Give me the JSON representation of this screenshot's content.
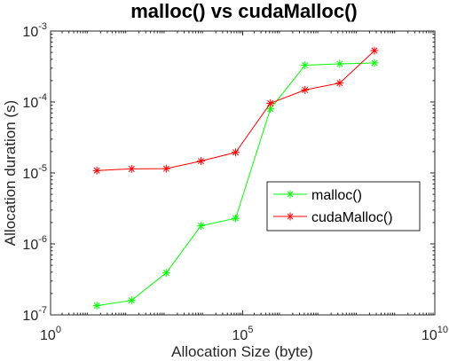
{
  "chart_data": {
    "type": "line",
    "title": "malloc() vs cudaMalloc()",
    "xlabel": "Allocation Size (byte)",
    "ylabel": "Allocation duration (s)",
    "xscale": "log",
    "yscale": "log",
    "xlim": [
      1,
      10000000000
    ],
    "ylim": [
      1e-07,
      0.001
    ],
    "x_ticks": [
      {
        "value": 1,
        "base": "10",
        "exp": "0"
      },
      {
        "value": 100000,
        "base": "10",
        "exp": "5"
      },
      {
        "value": 10000000000,
        "base": "10",
        "exp": "10"
      }
    ],
    "y_ticks": [
      {
        "value": 1e-07,
        "base": "10",
        "exp": "-7"
      },
      {
        "value": 1e-06,
        "base": "10",
        "exp": "-6"
      },
      {
        "value": 1e-05,
        "base": "10",
        "exp": "-5"
      },
      {
        "value": 0.0001,
        "base": "10",
        "exp": "-4"
      },
      {
        "value": 0.001,
        "base": "10",
        "exp": "-3"
      }
    ],
    "x": [
      16,
      128,
      1024,
      8192,
      65536,
      524288,
      4194304,
      33554432,
      268435456
    ],
    "series": [
      {
        "name": "malloc()",
        "color": "#00ff00",
        "marker": "asterisk",
        "values": [
          1.35e-07,
          1.6e-07,
          3.9e-07,
          1.8e-06,
          2.3e-06,
          8e-05,
          0.00033,
          0.000345,
          0.000355
        ]
      },
      {
        "name": "cudaMalloc()",
        "color": "#ff0000",
        "marker": "asterisk",
        "values": [
          1.08e-05,
          1.14e-05,
          1.15e-05,
          1.47e-05,
          1.95e-05,
          9.6e-05,
          0.000148,
          0.000185,
          0.00053
        ]
      }
    ],
    "grid": false,
    "legend_position": "right-middle"
  }
}
